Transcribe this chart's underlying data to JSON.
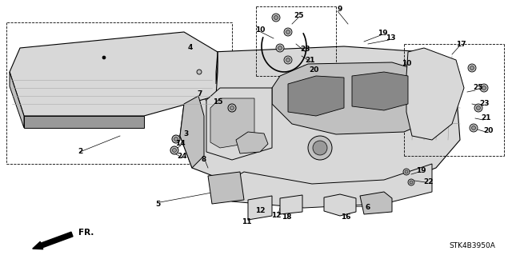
{
  "bg_color": "#ffffff",
  "part_code": "STK4B3950A",
  "fig_width": 6.4,
  "fig_height": 3.19,
  "dpi": 100,
  "black": "#000000",
  "gray": "#aaaaaa",
  "light_gray": "#d8d8d8",
  "mid_gray": "#c0c0c0",
  "dark_gray": "#999999"
}
